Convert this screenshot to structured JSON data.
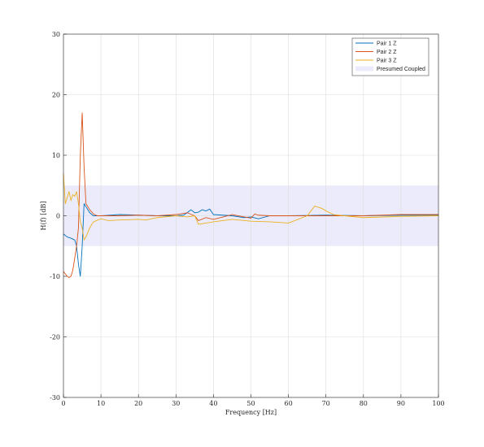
{
  "chart_data": {
    "type": "line",
    "title": "",
    "xlabel": "Frequency [Hz]",
    "ylabel": "H(f) [dB]",
    "xlim": [
      0,
      100
    ],
    "ylim": [
      -30,
      30
    ],
    "xticks": [
      0,
      10,
      20,
      30,
      40,
      50,
      60,
      70,
      80,
      90,
      100
    ],
    "yticks": [
      -30,
      -20,
      -10,
      0,
      10,
      20,
      30
    ],
    "grid": true,
    "legend_position": "top-right",
    "band": {
      "name": "Presumed Coupled",
      "y_min": -5,
      "y_max": 5,
      "color": "#ebebfb"
    },
    "series": [
      {
        "name": "Pair 1 Z",
        "color": "#0072bd",
        "x": [
          0,
          1,
          2,
          3,
          3.5,
          4,
          4.5,
          5,
          5.5,
          6,
          7,
          8,
          10,
          15,
          20,
          25,
          30,
          32,
          33,
          34,
          35,
          36,
          37,
          38,
          39,
          40,
          45,
          48,
          50,
          52,
          55,
          60,
          70,
          80,
          90,
          100
        ],
        "y": [
          -3,
          -3.5,
          -3.7,
          -4,
          -5,
          -8,
          -10,
          -5,
          2,
          1.5,
          0.5,
          0,
          0,
          0.2,
          0.1,
          0,
          0,
          0.1,
          0.5,
          1,
          0.5,
          0.6,
          1,
          0.8,
          1.1,
          0.2,
          0,
          -0.3,
          -0.2,
          -0.5,
          0,
          0,
          0.1,
          0,
          0.1,
          0.1
        ]
      },
      {
        "name": "Pair 2 Z",
        "color": "#d95319",
        "x": [
          0,
          0.5,
          1,
          1.5,
          2,
          2.5,
          3,
          3.5,
          4,
          4.5,
          5,
          5.5,
          6,
          7,
          8,
          9,
          10,
          15,
          20,
          25,
          30,
          33,
          35,
          36,
          38,
          40,
          45,
          50,
          51,
          52,
          55,
          60,
          70,
          80,
          90,
          100
        ],
        "y": [
          -9.2,
          -9.6,
          -10,
          -10.2,
          -10,
          -9,
          -7,
          -5,
          -2,
          10,
          17,
          8,
          2,
          1,
          0.3,
          0,
          0,
          0,
          0.1,
          0,
          0.2,
          0.5,
          0,
          -0.8,
          -0.3,
          -0.6,
          0.2,
          -0.4,
          0.3,
          0.1,
          0,
          0,
          0,
          0,
          0.2,
          0.2
        ]
      },
      {
        "name": "Pair 3 Z",
        "color": "#edb120",
        "x": [
          0,
          0.5,
          1,
          1.5,
          2,
          2.5,
          3,
          3.5,
          4,
          4.5,
          5,
          5.5,
          6,
          7,
          8,
          10,
          12,
          15,
          20,
          22,
          25,
          30,
          33,
          35,
          36,
          40,
          45,
          50,
          55,
          60,
          65,
          67,
          69,
          70,
          72,
          75,
          80,
          90,
          100
        ],
        "y": [
          7,
          2,
          3,
          4,
          2.5,
          3.5,
          3.2,
          4,
          2,
          -1,
          -2,
          -4,
          -3.5,
          -2,
          -1,
          -0.5,
          -0.8,
          -0.7,
          -0.6,
          -0.7,
          -0.3,
          0,
          -0.2,
          0,
          -1.4,
          -1,
          -0.6,
          -0.9,
          -1,
          -1.2,
          0,
          1.6,
          1.2,
          0.8,
          0.2,
          0,
          -0.3,
          -0.1,
          0
        ]
      }
    ]
  }
}
